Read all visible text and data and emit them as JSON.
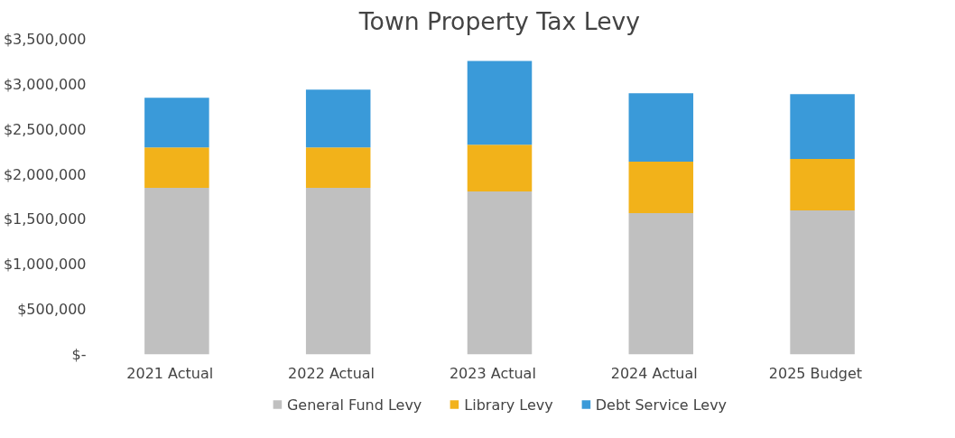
{
  "chart_data": {
    "type": "bar",
    "title": "Town Property Tax Levy",
    "stacked": true,
    "categories": [
      "2021    Actual",
      "2022    Actual",
      "2023    Actual",
      "2024    Actual",
      "2025    Budget"
    ],
    "series": [
      {
        "name": "General Fund Levy",
        "color": "#c0c0c0",
        "values": [
          1850000,
          1850000,
          1810000,
          1570000,
          1600000
        ]
      },
      {
        "name": "Library Levy",
        "color": "#f2b21a",
        "values": [
          450000,
          450000,
          520000,
          570000,
          570000
        ]
      },
      {
        "name": "Debt Service Levy",
        "color": "#3a9ad9",
        "values": [
          550000,
          640000,
          930000,
          760000,
          720000
        ]
      }
    ],
    "ylim": [
      0,
      3500000
    ],
    "yticks": [
      {
        "value": 0,
        "label": "$-"
      },
      {
        "value": 500000,
        "label": "$500,000"
      },
      {
        "value": 1000000,
        "label": "$1,000,000"
      },
      {
        "value": 1500000,
        "label": "$1,500,000"
      },
      {
        "value": 2000000,
        "label": "$2,000,000"
      },
      {
        "value": 2500000,
        "label": "$2,500,000"
      },
      {
        "value": 3000000,
        "label": "$3,000,000"
      },
      {
        "value": 3500000,
        "label": "$3,500,000"
      }
    ],
    "grid": false,
    "legend": "bottom"
  }
}
